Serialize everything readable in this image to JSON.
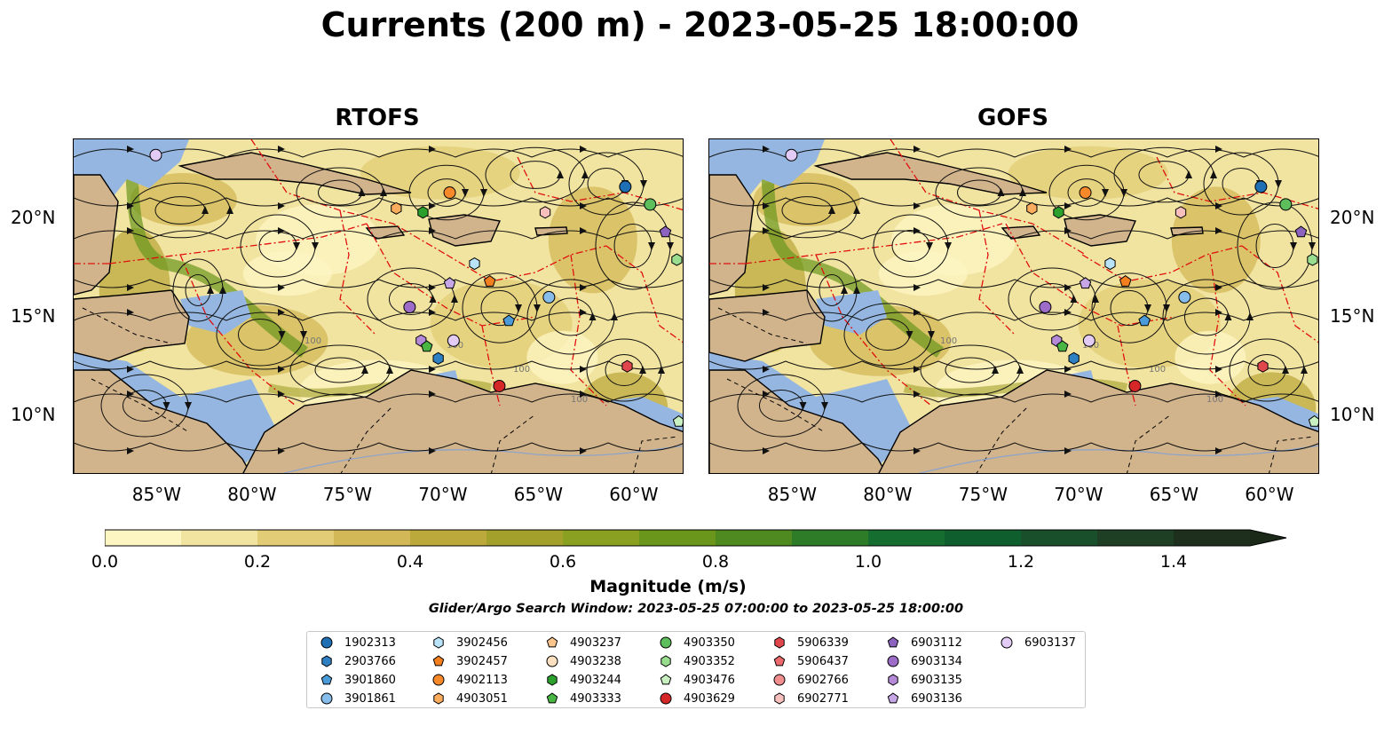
{
  "title": "Currents (200 m) - 2023-05-25 18:00:00",
  "panels": [
    {
      "title": "RTOFS"
    },
    {
      "title": "GOFS"
    }
  ],
  "map": {
    "lon_range": [
      -89.5,
      -57.5
    ],
    "lat_range": [
      7,
      24
    ],
    "x_ticks": [
      "85°W",
      "80°W",
      "75°W",
      "70°W",
      "65°W",
      "60°W"
    ],
    "y_ticks": [
      "20°N",
      "15°N",
      "10°N"
    ],
    "land_color": "#d2b48c",
    "shelf_color": "#94b6e0",
    "contour_label": "100"
  },
  "colorbar": {
    "title": "Magnitude (m/s)",
    "tick_labels": [
      "0.0",
      "0.2",
      "0.4",
      "0.6",
      "0.8",
      "1.0",
      "1.2",
      "1.4"
    ],
    "range": [
      0,
      1.5
    ],
    "extend": "max",
    "colors": [
      "#fdf6c3",
      "#f1e3a0",
      "#e2cd76",
      "#d2b856",
      "#bba93c",
      "#a4a02c",
      "#8aa020",
      "#6a961c",
      "#4e8a20",
      "#2e7c28",
      "#166d30",
      "#0f5f2e",
      "#1a4f2c",
      "#1f3f25",
      "#1e2f1e"
    ]
  },
  "search_window": "Glider/Argo Search Window: 2023-05-25 07:00:00 to 2023-05-25 18:00:00",
  "legend": [
    {
      "id": "1902313",
      "color": "#1f6fb4",
      "shape": "circle"
    },
    {
      "id": "2903766",
      "color": "#2f7fc3",
      "shape": "hexagon"
    },
    {
      "id": "3901860",
      "color": "#4a9bd8",
      "shape": "pentagon"
    },
    {
      "id": "3901861",
      "color": "#87bdea",
      "shape": "circle"
    },
    {
      "id": "3902456",
      "color": "#b9e3f8",
      "shape": "hexagon"
    },
    {
      "id": "3902457",
      "color": "#f47f1f",
      "shape": "pentagon"
    },
    {
      "id": "4902113",
      "color": "#f7892b",
      "shape": "circle"
    },
    {
      "id": "4903051",
      "color": "#fbad5d",
      "shape": "hexagon"
    },
    {
      "id": "4903237",
      "color": "#fdc58b",
      "shape": "pentagon"
    },
    {
      "id": "4903238",
      "color": "#fde0c0",
      "shape": "circle"
    },
    {
      "id": "4903244",
      "color": "#2ca02c",
      "shape": "hexagon"
    },
    {
      "id": "4903333",
      "color": "#49b543",
      "shape": "pentagon"
    },
    {
      "id": "4903350",
      "color": "#5cbf5c",
      "shape": "circle"
    },
    {
      "id": "4903352",
      "color": "#99dd8f",
      "shape": "hexagon"
    },
    {
      "id": "4903476",
      "color": "#c8f0c0",
      "shape": "pentagon"
    },
    {
      "id": "4903629",
      "color": "#d62728",
      "shape": "circle"
    },
    {
      "id": "5906339",
      "color": "#e0474c",
      "shape": "hexagon"
    },
    {
      "id": "5906437",
      "color": "#ec6a6e",
      "shape": "pentagon"
    },
    {
      "id": "6902766",
      "color": "#f28e8e",
      "shape": "circle"
    },
    {
      "id": "6902771",
      "color": "#f7c0bd",
      "shape": "hexagon"
    },
    {
      "id": "6903112",
      "color": "#8c64c0",
      "shape": "pentagon"
    },
    {
      "id": "6903134",
      "color": "#9c6cc8",
      "shape": "circle"
    },
    {
      "id": "6903135",
      "color": "#b48ad8",
      "shape": "hexagon"
    },
    {
      "id": "6903136",
      "color": "#c6a6e6",
      "shape": "pentagon"
    },
    {
      "id": "6903137",
      "color": "#e2cbf4",
      "shape": "circle"
    }
  ],
  "floats": {
    "rtofs": [
      {
        "id": "6903137",
        "lon": -85.2,
        "lat": 23.2
      },
      {
        "id": "4902113",
        "lon": -69.8,
        "lat": 21.3
      },
      {
        "id": "1902313",
        "lon": -60.6,
        "lat": 21.6
      },
      {
        "id": "4903051",
        "lon": -72.6,
        "lat": 20.5
      },
      {
        "id": "4903244",
        "lon": -71.2,
        "lat": 20.3
      },
      {
        "id": "6902771",
        "lon": -64.8,
        "lat": 20.3
      },
      {
        "id": "4903350",
        "lon": -59.3,
        "lat": 20.7
      },
      {
        "id": "6903112",
        "lon": -58.5,
        "lat": 19.3
      },
      {
        "id": "4903352",
        "lon": -57.9,
        "lat": 17.9
      },
      {
        "id": "3902456",
        "lon": -68.5,
        "lat": 17.7
      },
      {
        "id": "6903136",
        "lon": -69.8,
        "lat": 16.7
      },
      {
        "id": "3902457",
        "lon": -67.7,
        "lat": 16.8
      },
      {
        "id": "3901861",
        "lon": -64.6,
        "lat": 16.0
      },
      {
        "id": "6903134",
        "lon": -71.9,
        "lat": 15.5
      },
      {
        "id": "3901860",
        "lon": -66.7,
        "lat": 14.8
      },
      {
        "id": "6903135",
        "lon": -71.3,
        "lat": 13.8
      },
      {
        "id": "4903333",
        "lon": -71.0,
        "lat": 13.5
      },
      {
        "id": "6903137",
        "lon": -69.6,
        "lat": 13.8
      },
      {
        "id": "2903766",
        "lon": -70.4,
        "lat": 12.9
      },
      {
        "id": "5906339",
        "lon": -60.5,
        "lat": 12.5
      },
      {
        "id": "4903629",
        "lon": -67.2,
        "lat": 11.5
      },
      {
        "id": "4903476",
        "lon": -57.8,
        "lat": 9.7
      }
    ],
    "gofs": [
      {
        "id": "6903137",
        "lon": -85.2,
        "lat": 23.2
      },
      {
        "id": "4902113",
        "lon": -69.8,
        "lat": 21.3
      },
      {
        "id": "1902313",
        "lon": -60.6,
        "lat": 21.6
      },
      {
        "id": "4903051",
        "lon": -72.6,
        "lat": 20.5
      },
      {
        "id": "4903244",
        "lon": -71.2,
        "lat": 20.3
      },
      {
        "id": "6902771",
        "lon": -64.8,
        "lat": 20.3
      },
      {
        "id": "4903350",
        "lon": -59.3,
        "lat": 20.7
      },
      {
        "id": "6903112",
        "lon": -58.5,
        "lat": 19.3
      },
      {
        "id": "4903352",
        "lon": -57.9,
        "lat": 17.9
      },
      {
        "id": "3902456",
        "lon": -68.5,
        "lat": 17.7
      },
      {
        "id": "6903136",
        "lon": -69.8,
        "lat": 16.7
      },
      {
        "id": "3902457",
        "lon": -67.7,
        "lat": 16.8
      },
      {
        "id": "3901861",
        "lon": -64.6,
        "lat": 16.0
      },
      {
        "id": "6903134",
        "lon": -71.9,
        "lat": 15.5
      },
      {
        "id": "3901860",
        "lon": -66.7,
        "lat": 14.8
      },
      {
        "id": "6903135",
        "lon": -71.3,
        "lat": 13.8
      },
      {
        "id": "4903333",
        "lon": -71.0,
        "lat": 13.5
      },
      {
        "id": "6903137",
        "lon": -69.6,
        "lat": 13.8
      },
      {
        "id": "2903766",
        "lon": -70.4,
        "lat": 12.9
      },
      {
        "id": "5906339",
        "lon": -60.5,
        "lat": 12.5
      },
      {
        "id": "4903629",
        "lon": -67.2,
        "lat": 11.5
      },
      {
        "id": "4903476",
        "lon": -57.8,
        "lat": 9.7
      }
    ]
  }
}
